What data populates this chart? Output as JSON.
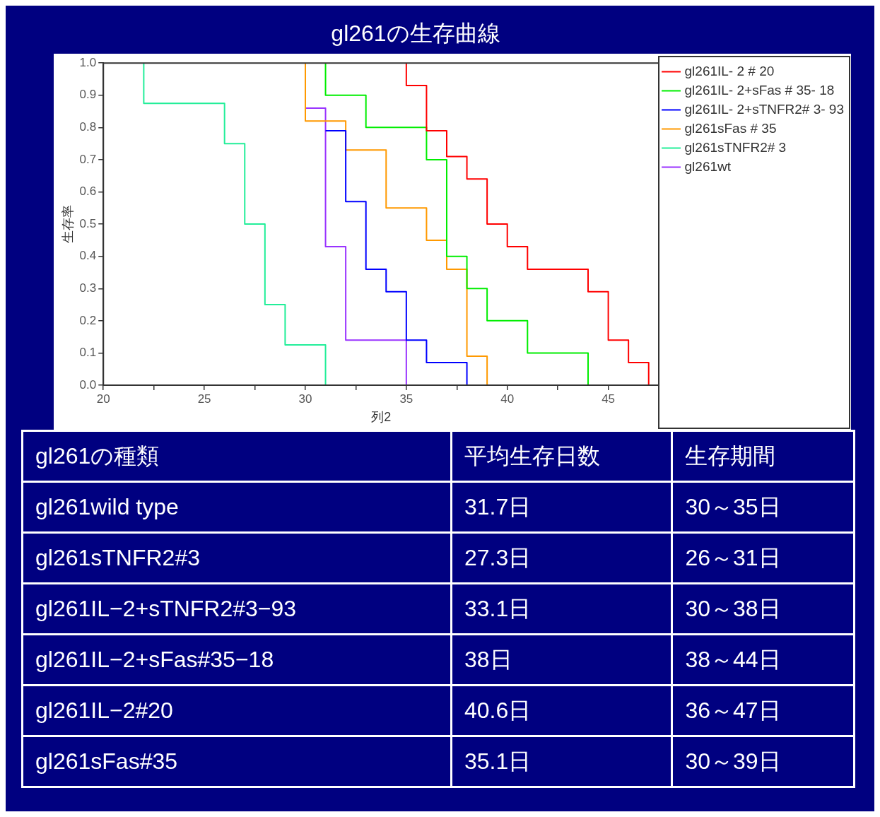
{
  "chart_data": [
    {
      "type": "step",
      "title": "gl261の生存曲線",
      "xlabel": "列2",
      "ylabel": "生存率",
      "xlim": [
        20,
        47.5
      ],
      "xticks": [
        20,
        {
          "value": 22.5,
          "label": null
        },
        25,
        {
          "value": 27.5,
          "label": null
        },
        30,
        {
          "value": 32.5,
          "label": null
        },
        35,
        {
          "value": 37.5,
          "label": null
        },
        40,
        {
          "value": 42.5,
          "label": null
        },
        45
      ],
      "ylim": [
        0,
        1
      ],
      "yticks": [
        {
          "value": 0,
          "label": "0.0"
        },
        0.1,
        0.2,
        0.3,
        0.4,
        0.5,
        0.6,
        0.7,
        0.8,
        0.9,
        {
          "value": 1,
          "label": "1.0"
        }
      ],
      "grid": false,
      "legend": "right",
      "marker": "none",
      "series": [
        {
          "name": "gl261IL- 2 # 20",
          "color": "#ff0000",
          "x": [
            35,
            35,
            36,
            37,
            38,
            39,
            40,
            41,
            44,
            45,
            46,
            47
          ],
          "values": [
            1,
            0.93,
            0.79,
            0.71,
            0.64,
            0.5,
            0.43,
            0.36,
            0.29,
            0.14,
            0.07,
            0
          ]
        },
        {
          "name": "gl261IL- 2+sFas # 35- 18",
          "color": "#00ee00",
          "x": [
            31,
            31,
            33,
            36,
            37,
            38,
            39,
            41,
            44
          ],
          "values": [
            1,
            0.9,
            0.8,
            0.7,
            0.4,
            0.3,
            0.2,
            0.1,
            0
          ]
        },
        {
          "name": "gl261IL- 2+sTNFR2# 3- 93",
          "color": "#0000ff",
          "x": [
            31,
            32,
            33,
            34,
            35,
            36,
            38
          ],
          "values": [
            0.79,
            0.57,
            0.36,
            0.29,
            0.14,
            0.07,
            0
          ]
        },
        {
          "name": "gl261sFas # 35",
          "color": "#ff9900",
          "x": [
            30,
            30,
            32,
            34,
            36,
            37,
            38,
            39
          ],
          "values": [
            1,
            0.82,
            0.73,
            0.55,
            0.45,
            0.36,
            0.09,
            0
          ]
        },
        {
          "name": "gl261sTNFR2# 3",
          "color": "#22ee99",
          "x": [
            22,
            22,
            26,
            27,
            28,
            29,
            31
          ],
          "values": [
            1,
            0.875,
            0.75,
            0.5,
            0.25,
            0.125,
            0
          ]
        },
        {
          "name": "gl261wt",
          "color": "#9933ff",
          "x": [
            30,
            31,
            32,
            35
          ],
          "values": [
            0.86,
            0.43,
            0.14,
            0
          ]
        }
      ]
    },
    {
      "type": "other",
      "annotations": [
        "gl261の種類",
        "平均生存日数",
        "生存期間",
        "gl261wild type",
        "31.7日",
        "30～35日",
        "gl261sTNFR2#3",
        "27.3日",
        "26～31日",
        "gl261IL−2+sTNFR2#3−93",
        "33.1日",
        "30～38日",
        "gl261IL−2+sFas#35−18",
        "38日",
        "38～44日",
        "gl261IL−2#20",
        "40.6日",
        "36～47日",
        "gl261sFas#35",
        "35.1日",
        "30～39日"
      ]
    }
  ]
}
